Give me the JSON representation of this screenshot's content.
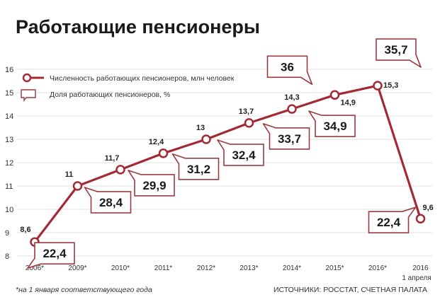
{
  "chart_data": {
    "type": "line",
    "title": "Работающие пенсионеры",
    "x_categories": [
      "2006*",
      "2009*",
      "2010*",
      "2011*",
      "2012*",
      "2013*",
      "2014*",
      "2015*",
      "2016*",
      "2016"
    ],
    "x_sublabel": "1 апреля",
    "ylim": [
      8,
      16
    ],
    "yticks": [
      8,
      9,
      10,
      11,
      12,
      13,
      14,
      15,
      16
    ],
    "grid": "horizontal",
    "legend_placement": "top-left",
    "series": [
      {
        "name": "Численность работающих пенсионеров, млн человек",
        "color": "#a32a35",
        "values": [
          8.6,
          11,
          11.7,
          12.4,
          13,
          13.7,
          14.3,
          14.9,
          15.3,
          9.6
        ],
        "labels": [
          "8,6",
          "11",
          "11,7",
          "12,4",
          "13",
          "13,7",
          "14,3",
          "14,9",
          "15,3",
          "9,6"
        ]
      },
      {
        "name": "Доля работающих пенсионеров, %",
        "values": [
          22.4,
          28.4,
          29.9,
          31.2,
          32.4,
          33.7,
          34.9,
          36,
          35.7,
          22.4
        ],
        "labels": [
          "22,4",
          "28,4",
          "29,9",
          "31,2",
          "32,4",
          "33,7",
          "34,9",
          "36",
          "35,7",
          "22,4"
        ]
      }
    ]
  },
  "footnote": "*на 1 января соответствующего года",
  "sources": "ИСТОЧНИКИ: РОССТАТ, СЧЕТНАЯ ПАЛАТА"
}
